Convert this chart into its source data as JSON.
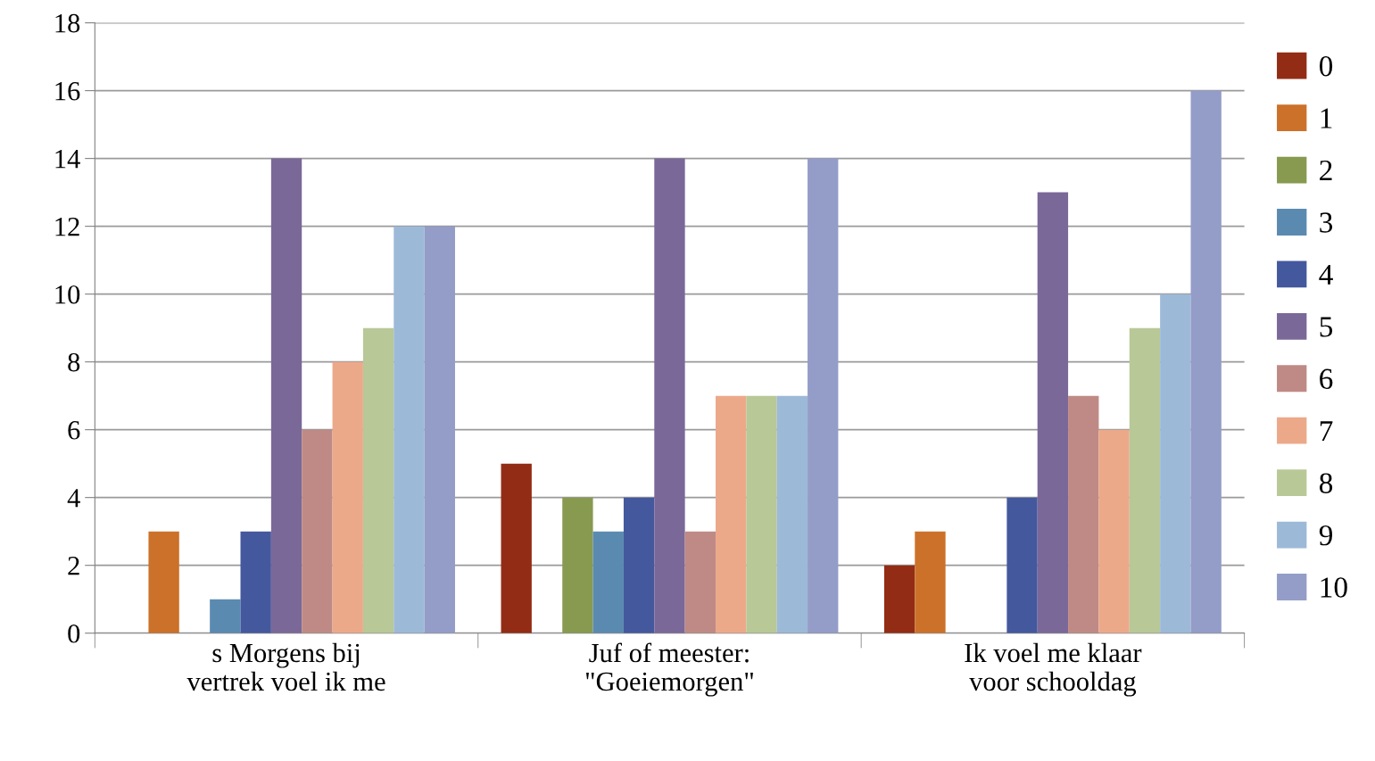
{
  "chart_data": {
    "type": "bar",
    "categories": [
      "s Morgens bij\nvertrek voel ik me",
      "Juf of meester:\n\"Goeiemorgen\"",
      "Ik voel me klaar\nvoor schooldag"
    ],
    "series": [
      {
        "name": "0",
        "color": "#922c14",
        "values": [
          0,
          5,
          2
        ]
      },
      {
        "name": "1",
        "color": "#cc7129",
        "values": [
          3,
          0,
          3
        ]
      },
      {
        "name": "2",
        "color": "#889a50",
        "values": [
          0,
          4,
          0
        ]
      },
      {
        "name": "3",
        "color": "#5b8ab0",
        "values": [
          1,
          3,
          0
        ]
      },
      {
        "name": "4",
        "color": "#44589e",
        "values": [
          3,
          4,
          4
        ]
      },
      {
        "name": "5",
        "color": "#7a6898",
        "values": [
          14,
          14,
          13
        ]
      },
      {
        "name": "6",
        "color": "#bf8a85",
        "values": [
          6,
          3,
          7
        ]
      },
      {
        "name": "7",
        "color": "#eca98a",
        "values": [
          8,
          7,
          6
        ]
      },
      {
        "name": "8",
        "color": "#b8c897",
        "values": [
          9,
          7,
          9
        ]
      },
      {
        "name": "9",
        "color": "#9db9d8",
        "values": [
          12,
          7,
          10
        ]
      },
      {
        "name": "10",
        "color": "#949dc8",
        "values": [
          12,
          14,
          16
        ]
      }
    ],
    "ylim": [
      0,
      18
    ],
    "yticks": [
      0,
      2,
      4,
      6,
      8,
      10,
      12,
      14,
      16,
      18
    ],
    "grid": "y",
    "legend": "right"
  }
}
